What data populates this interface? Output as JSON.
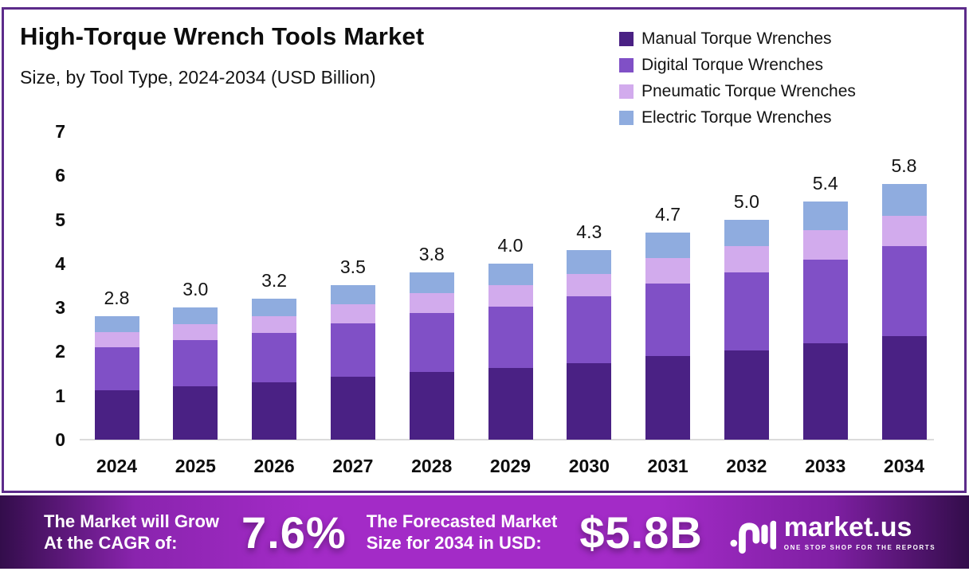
{
  "title": "High-Torque Wrench Tools Market",
  "subtitle": "Size, by Tool Type, 2024-2034 (USD Billion)",
  "legend": [
    {
      "label": "Manual Torque Wrenches",
      "color": "#4A2184"
    },
    {
      "label": "Digital Torque Wrenches",
      "color": "#8050C6"
    },
    {
      "label": "Pneumatic Torque Wrenches",
      "color": "#D2ABED"
    },
    {
      "label": "Electric Torque Wrenches",
      "color": "#8FACDF"
    }
  ],
  "chart_data": {
    "type": "bar",
    "stacked": true,
    "title": "High-Torque Wrench Tools Market Size, by Tool Type, 2024-2034 (USD Billion)",
    "categories": [
      "2024",
      "2025",
      "2026",
      "2027",
      "2028",
      "2029",
      "2030",
      "2031",
      "2032",
      "2033",
      "2034"
    ],
    "series": [
      {
        "name": "Manual Torque Wrenches",
        "color": "#4A2184",
        "values": [
          1.13,
          1.21,
          1.3,
          1.42,
          1.54,
          1.62,
          1.74,
          1.9,
          2.03,
          2.19,
          2.35
        ]
      },
      {
        "name": "Digital Torque Wrenches",
        "color": "#8050C6",
        "values": [
          0.97,
          1.05,
          1.12,
          1.22,
          1.33,
          1.4,
          1.51,
          1.65,
          1.76,
          1.9,
          2.04
        ]
      },
      {
        "name": "Pneumatic Torque Wrenches",
        "color": "#D2ABED",
        "values": [
          0.35,
          0.37,
          0.38,
          0.43,
          0.46,
          0.49,
          0.52,
          0.57,
          0.61,
          0.66,
          0.7
        ]
      },
      {
        "name": "Electric Torque Wrenches",
        "color": "#8FACDF",
        "values": [
          0.35,
          0.37,
          0.4,
          0.43,
          0.47,
          0.49,
          0.53,
          0.58,
          0.6,
          0.65,
          0.71
        ]
      }
    ],
    "total_labels": [
      "2.8",
      "3.0",
      "3.2",
      "3.5",
      "3.8",
      "4.0",
      "4.3",
      "4.7",
      "5.0",
      "5.4",
      "5.8"
    ],
    "yticks": [
      0,
      1,
      2,
      3,
      4,
      5,
      6,
      7
    ],
    "ylim": [
      0,
      7
    ],
    "xlabel": "",
    "ylabel": "",
    "grid": false,
    "legend_position": "top-right"
  },
  "banner": {
    "cagr_label_line1": "The Market will Grow",
    "cagr_label_line2": "At the CAGR of:",
    "cagr_value": "7.6%",
    "forecast_label_line1": "The Forecasted Market",
    "forecast_label_line2": "Size for 2034 in USD:",
    "forecast_value": "$5.8B",
    "logo_text": "market.us",
    "logo_tagline": "ONE STOP SHOP FOR THE REPORTS"
  },
  "colors": {
    "frame_border": "#5C2B8A",
    "banner_mid": "#A32BC7",
    "banner_edge": "#330D4B",
    "baseline": "#DBDBDB"
  }
}
